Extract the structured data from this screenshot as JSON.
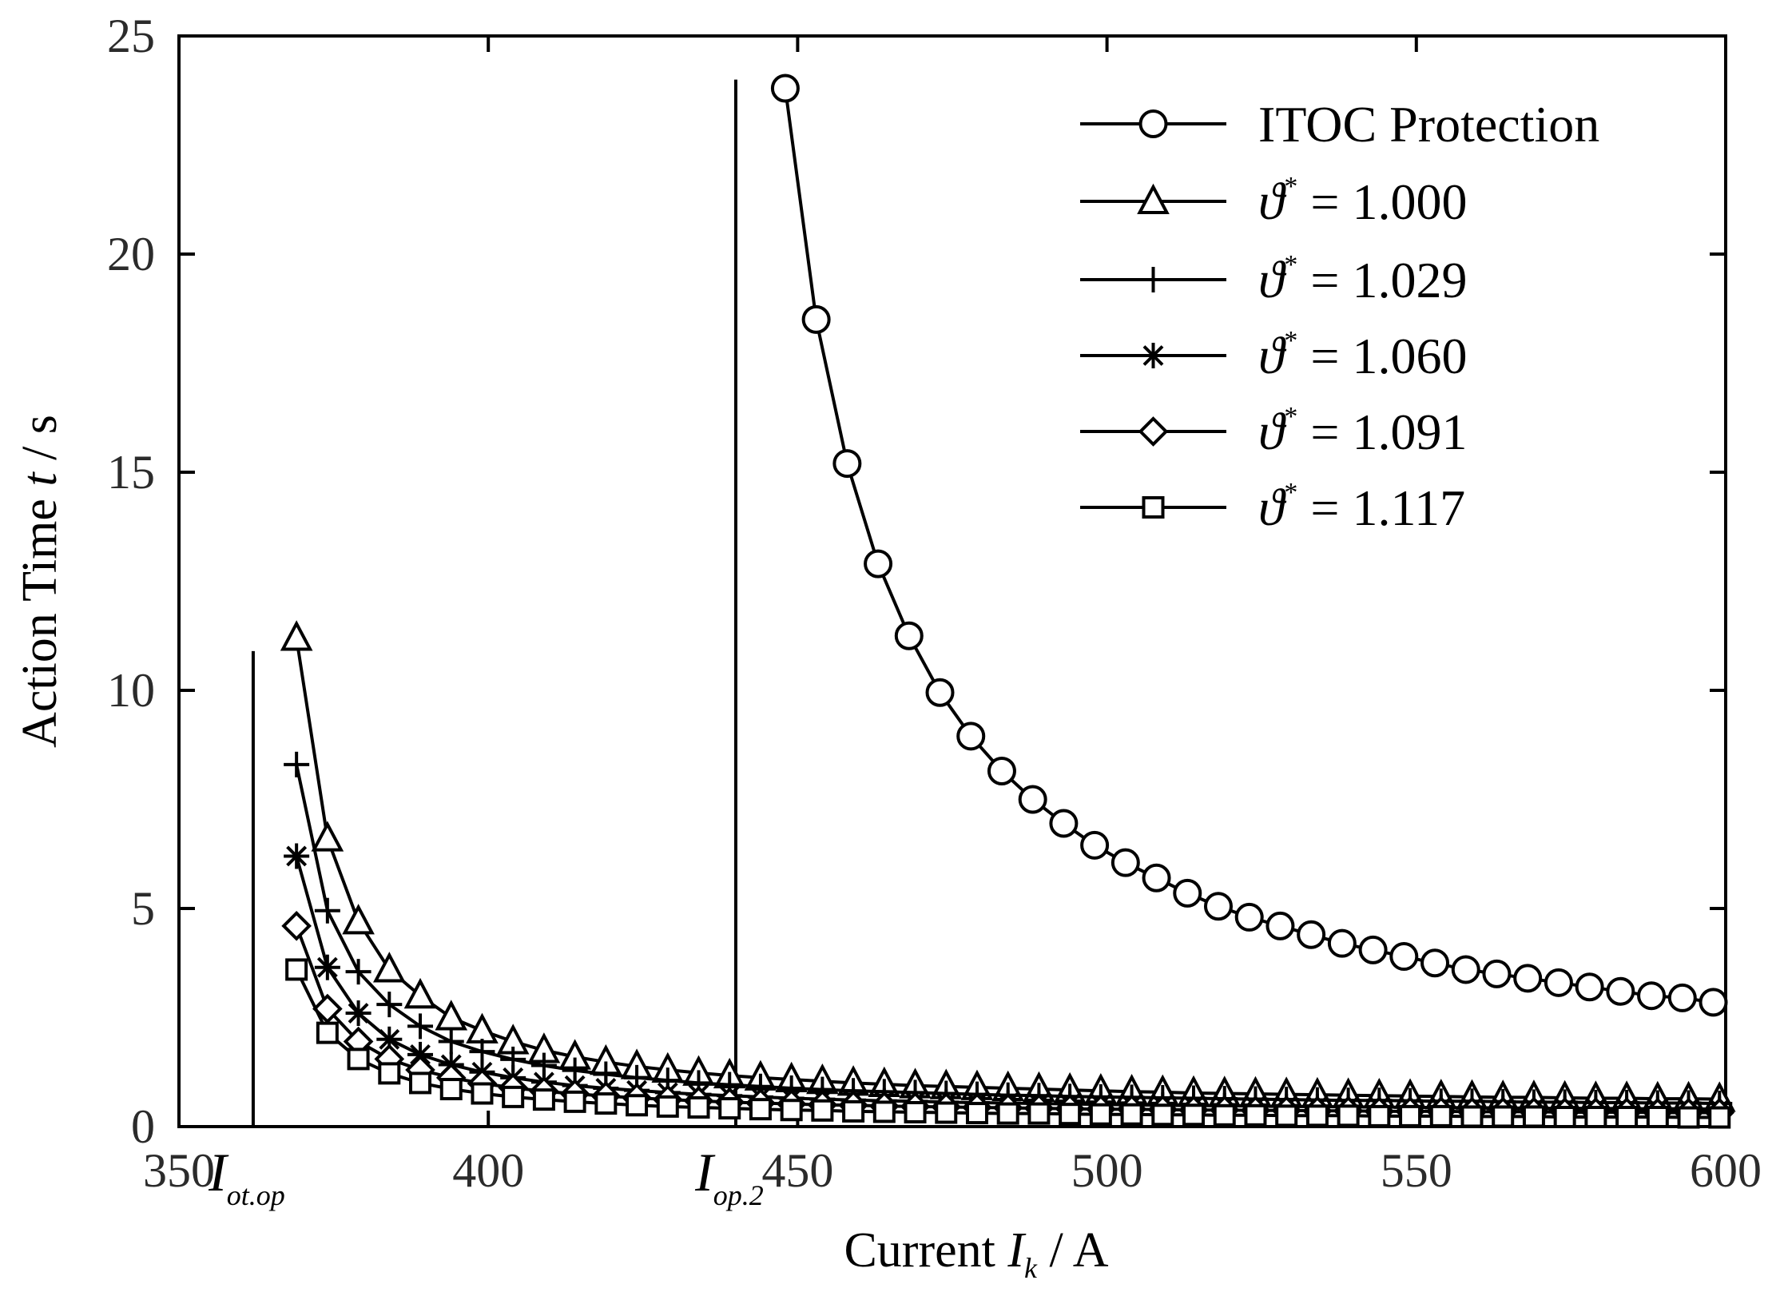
{
  "chart_data": {
    "type": "line",
    "xlabel_prefix": "Current",
    "xlabel_var": "I",
    "xlabel_sub": "k",
    "xlabel_unit": "/ A",
    "ylabel_prefix": "Action Time",
    "ylabel_var": "t",
    "ylabel_unit": "/ s",
    "xlim": [
      350,
      600
    ],
    "ylim": [
      0,
      25
    ],
    "xticks": [
      350,
      400,
      450,
      500,
      550,
      600
    ],
    "yticks": [
      0,
      5,
      10,
      15,
      20,
      25
    ],
    "theta_symbol": "ϑ",
    "theta_sup": "*",
    "equals": "=",
    "vlines": [
      {
        "x": 362,
        "y_top": 10.9,
        "label_var": "I",
        "label_sub": "ot.op"
      },
      {
        "x": 440,
        "y_top": 24.0,
        "label_var": "I",
        "label_sub": "op.2"
      }
    ],
    "series": [
      {
        "name": "ITOC Protection",
        "marker": "circle",
        "x": [
          448,
          453,
          458,
          463,
          468,
          473,
          478,
          483,
          488,
          493,
          498,
          503,
          508,
          513,
          518,
          523,
          528,
          533,
          538,
          543,
          548,
          553,
          558,
          563,
          568,
          573,
          578,
          583,
          588,
          593,
          598
        ],
        "y": [
          23.8,
          18.5,
          15.2,
          12.9,
          11.25,
          9.95,
          8.95,
          8.15,
          7.5,
          6.95,
          6.45,
          6.05,
          5.7,
          5.35,
          5.05,
          4.8,
          4.6,
          4.4,
          4.2,
          4.05,
          3.9,
          3.75,
          3.6,
          3.5,
          3.4,
          3.3,
          3.2,
          3.1,
          3.0,
          2.95,
          2.85
        ]
      },
      {
        "name": "1.000",
        "marker": "triangle",
        "x": [
          369,
          374,
          379,
          384,
          389,
          394,
          399,
          404,
          409,
          414,
          419,
          424,
          429,
          434,
          439,
          444,
          449,
          454,
          459,
          464,
          469,
          474,
          479,
          484,
          489,
          494,
          499,
          504,
          509,
          514,
          519,
          524,
          529,
          534,
          539,
          544,
          549,
          554,
          559,
          564,
          569,
          574,
          579,
          584,
          589,
          594,
          599
        ],
        "y": [
          11.2,
          6.6,
          4.7,
          3.6,
          3.0,
          2.5,
          2.2,
          1.95,
          1.75,
          1.6,
          1.48,
          1.38,
          1.3,
          1.23,
          1.17,
          1.12,
          1.08,
          1.04,
          1.0,
          0.97,
          0.94,
          0.92,
          0.9,
          0.88,
          0.86,
          0.84,
          0.82,
          0.8,
          0.79,
          0.77,
          0.76,
          0.75,
          0.74,
          0.73,
          0.72,
          0.71,
          0.7,
          0.69,
          0.68,
          0.67,
          0.67,
          0.66,
          0.65,
          0.65,
          0.64,
          0.64,
          0.63
        ]
      },
      {
        "name": "1.029",
        "marker": "plus",
        "x": [
          369,
          374,
          379,
          384,
          389,
          394,
          399,
          404,
          409,
          414,
          419,
          424,
          429,
          434,
          439,
          444,
          449,
          454,
          459,
          464,
          469,
          474,
          479,
          484,
          489,
          494,
          499,
          504,
          509,
          514,
          519,
          524,
          529,
          534,
          539,
          544,
          549,
          554,
          559,
          564,
          569,
          574,
          579,
          584,
          589,
          594,
          599
        ],
        "y": [
          8.3,
          4.95,
          3.55,
          2.8,
          2.3,
          1.95,
          1.72,
          1.54,
          1.4,
          1.29,
          1.2,
          1.12,
          1.06,
          1.0,
          0.96,
          0.92,
          0.88,
          0.85,
          0.82,
          0.8,
          0.78,
          0.76,
          0.74,
          0.72,
          0.71,
          0.69,
          0.68,
          0.67,
          0.66,
          0.65,
          0.64,
          0.63,
          0.62,
          0.61,
          0.6,
          0.6,
          0.59,
          0.58,
          0.58,
          0.57,
          0.56,
          0.56,
          0.55,
          0.55,
          0.54,
          0.54,
          0.53
        ]
      },
      {
        "name": "1.060",
        "marker": "asterisk",
        "x": [
          369,
          374,
          379,
          384,
          389,
          394,
          399,
          404,
          409,
          414,
          419,
          424,
          429,
          434,
          439,
          444,
          449,
          454,
          459,
          464,
          469,
          474,
          479,
          484,
          489,
          494,
          499,
          504,
          509,
          514,
          519,
          524,
          529,
          534,
          539,
          544,
          549,
          554,
          559,
          564,
          569,
          574,
          579,
          584,
          589,
          594,
          599
        ],
        "y": [
          6.2,
          3.65,
          2.6,
          2.0,
          1.65,
          1.42,
          1.25,
          1.12,
          1.02,
          0.94,
          0.88,
          0.83,
          0.78,
          0.74,
          0.71,
          0.68,
          0.65,
          0.63,
          0.61,
          0.59,
          0.58,
          0.56,
          0.55,
          0.54,
          0.53,
          0.52,
          0.51,
          0.5,
          0.49,
          0.48,
          0.48,
          0.47,
          0.46,
          0.46,
          0.45,
          0.45,
          0.44,
          0.44,
          0.43,
          0.43,
          0.42,
          0.42,
          0.42,
          0.41,
          0.41,
          0.41,
          0.4
        ]
      },
      {
        "name": "1.091",
        "marker": "diamond",
        "x": [
          369,
          374,
          379,
          384,
          389,
          394,
          399,
          404,
          409,
          414,
          419,
          424,
          429,
          434,
          439,
          444,
          449,
          454,
          459,
          464,
          469,
          474,
          479,
          484,
          489,
          494,
          499,
          504,
          509,
          514,
          519,
          524,
          529,
          534,
          539,
          544,
          549,
          554,
          559,
          564,
          569,
          574,
          579,
          584,
          589,
          594,
          599
        ],
        "y": [
          4.6,
          2.7,
          1.95,
          1.55,
          1.3,
          1.12,
          0.99,
          0.89,
          0.81,
          0.75,
          0.7,
          0.66,
          0.62,
          0.59,
          0.56,
          0.54,
          0.52,
          0.5,
          0.49,
          0.47,
          0.46,
          0.45,
          0.44,
          0.43,
          0.42,
          0.41,
          0.4,
          0.4,
          0.39,
          0.38,
          0.38,
          0.37,
          0.37,
          0.36,
          0.36,
          0.35,
          0.35,
          0.35,
          0.34,
          0.34,
          0.34,
          0.33,
          0.33,
          0.33,
          0.32,
          0.32,
          0.32
        ]
      },
      {
        "name": "1.117",
        "marker": "square",
        "x": [
          369,
          374,
          379,
          384,
          389,
          394,
          399,
          404,
          409,
          414,
          419,
          424,
          429,
          434,
          439,
          444,
          449,
          454,
          459,
          464,
          469,
          474,
          479,
          484,
          489,
          494,
          499,
          504,
          509,
          514,
          519,
          524,
          529,
          534,
          539,
          544,
          549,
          554,
          559,
          564,
          569,
          574,
          579,
          584,
          589,
          594,
          599
        ],
        "y": [
          3.6,
          2.15,
          1.55,
          1.22,
          1.0,
          0.86,
          0.76,
          0.68,
          0.62,
          0.57,
          0.53,
          0.49,
          0.46,
          0.44,
          0.42,
          0.4,
          0.38,
          0.37,
          0.35,
          0.34,
          0.33,
          0.32,
          0.31,
          0.3,
          0.3,
          0.29,
          0.28,
          0.28,
          0.27,
          0.27,
          0.26,
          0.26,
          0.25,
          0.25,
          0.25,
          0.24,
          0.24,
          0.24,
          0.23,
          0.23,
          0.23,
          0.22,
          0.22,
          0.22,
          0.22,
          0.21,
          0.21
        ]
      }
    ]
  }
}
